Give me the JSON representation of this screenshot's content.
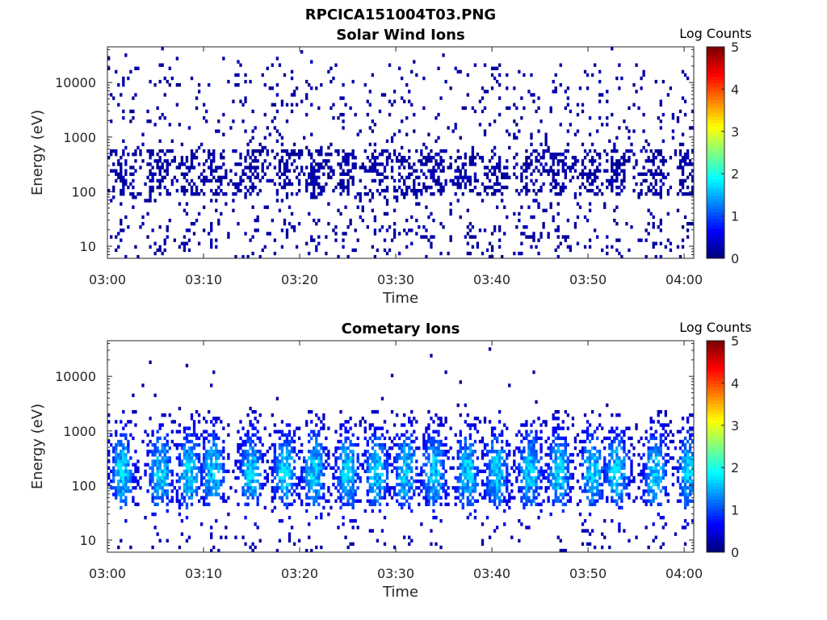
{
  "figure": {
    "title": "RPCICA151004T03.PNG"
  },
  "chart_data": [
    {
      "type": "heatmap",
      "title": "Solar Wind Ions",
      "xlabel": "Time",
      "ylabel": "Energy (eV)",
      "x_ticks": [
        "03:00",
        "03:10",
        "03:20",
        "03:30",
        "03:40",
        "03:50",
        "04:00"
      ],
      "y_ticks": [
        "10",
        "100",
        "1000",
        "10000"
      ],
      "y_scale": "log",
      "ylim": [
        6,
        45000
      ],
      "xlim": [
        "03:00",
        "04:01"
      ],
      "colorbar": {
        "label": "Log Counts",
        "ticks": [
          "0",
          "1",
          "2",
          "3",
          "4",
          "5"
        ],
        "range": [
          0,
          5
        ],
        "colormap": "jet"
      },
      "description_of_values": "Sparse scatter of low counts (log counts approx. 0-0.5) spanning 6 eV to ~20000 eV, denser between ~100 and ~500 eV",
      "structures": {
        "bursts": [
          "03:01.5",
          "03:05.5",
          "03:08.5",
          "03:11",
          "03:15",
          "03:18.5",
          "03:21.5",
          "03:25",
          "03:28",
          "03:31",
          "03:34",
          "03:37.5",
          "03:40.5",
          "03:44",
          "03:47",
          "03:50.5",
          "03:53",
          "03:57",
          "04:00.5"
        ],
        "typical_log_counts": 0.1
      }
    },
    {
      "type": "heatmap",
      "title": "Cometary Ions",
      "xlabel": "Time",
      "ylabel": "Energy (eV)",
      "x_ticks": [
        "03:00",
        "03:10",
        "03:20",
        "03:30",
        "03:40",
        "03:50",
        "04:00"
      ],
      "y_ticks": [
        "10",
        "100",
        "1000",
        "10000"
      ],
      "y_scale": "log",
      "ylim": [
        6,
        45000
      ],
      "xlim": [
        "03:00",
        "04:01"
      ],
      "colorbar": {
        "label": "Log Counts",
        "ticks": [
          "0",
          "1",
          "2",
          "3",
          "4",
          "5"
        ],
        "range": [
          0,
          5
        ],
        "colormap": "jet"
      },
      "description_of_values": "Periodic bursts of cometary ions between ~30 eV and ~2000 eV, peak log counts ~1.5-2 near 150-300 eV",
      "structures": {
        "bursts": [
          "03:01.5",
          "03:05.5",
          "03:08.5",
          "03:11",
          "03:15",
          "03:18.5",
          "03:21.5",
          "03:25",
          "03:28",
          "03:31",
          "03:34",
          "03:37.5",
          "03:40.5",
          "03:44",
          "03:47",
          "03:50.5",
          "03:53",
          "03:57",
          "04:00.5"
        ],
        "burst_energy_center_eV": 180,
        "peak_log_counts": 1.8
      }
    }
  ]
}
